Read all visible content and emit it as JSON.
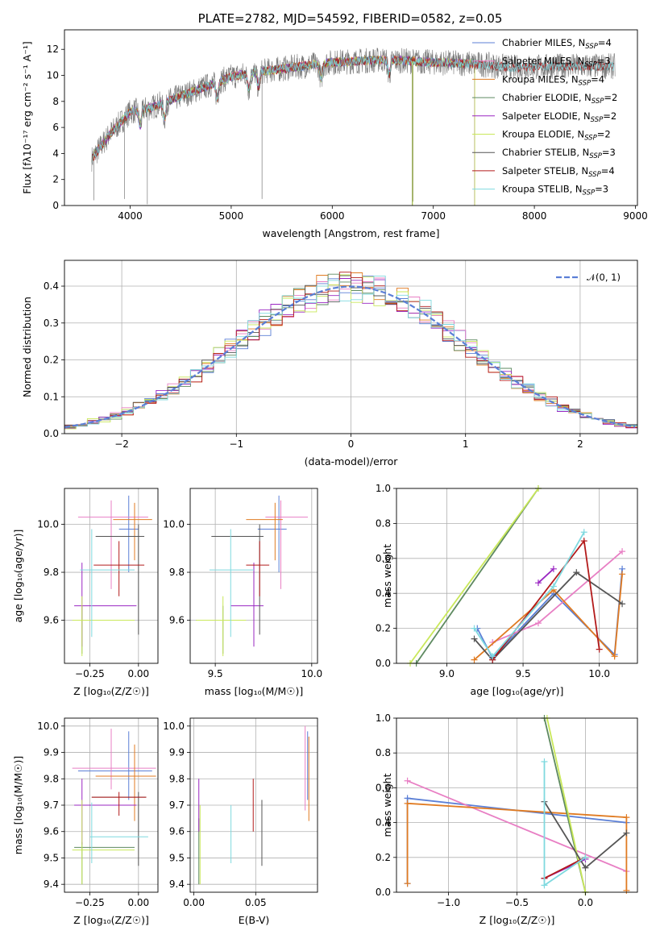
{
  "figure_title": "PLATE=2782, MJD=54592, FIBERID=0582, z=0.05",
  "colors": {
    "chabrier_miles": "#5b7fd6",
    "salpeter_miles": "#e87fc4",
    "kroupa_miles": "#e07b22",
    "chabrier_elodie": "#5e8a60",
    "salpeter_elodie": "#9a27c2",
    "kroupa_elodie": "#c9e85a",
    "chabrier_stelib": "#555555",
    "salpeter_stelib": "#b31b1b",
    "kroupa_stelib": "#7fd9df",
    "data": "#7a7a7a",
    "gaussian": "#5b7fd6",
    "grid": "#b0b0b0"
  },
  "chart_data": [
    {
      "type": "line",
      "title": "PLATE=2782, MJD=54592, FIBERID=0582, z=0.05",
      "xlabel": "wavelength [Angstrom, rest frame]",
      "ylabel": "Flux [fλ10⁻¹⁷ erg cm⁻² s⁻¹ A⁻¹]",
      "xlim": [
        3350,
        9020
      ],
      "ylim": [
        0,
        13.5
      ],
      "xticks": [
        "4000",
        "5000",
        "6000",
        "7000",
        "8000",
        "9000"
      ],
      "yticks": [
        "0",
        "2",
        "4",
        "6",
        "8",
        "10",
        "12"
      ],
      "legend_position": "right",
      "legend": [
        {
          "label": "Chabrier MILES, N",
          "sub": "SSP",
          "suffix": "=4"
        },
        {
          "label": "Salpeter MILES, N",
          "sub": "SSP",
          "suffix": "=3"
        },
        {
          "label": "Kroupa MILES, N",
          "sub": "SSP",
          "suffix": "=4"
        },
        {
          "label": "Chabrier ELODIE, N",
          "sub": "SSP",
          "suffix": "=2"
        },
        {
          "label": "Salpeter ELODIE, N",
          "sub": "SSP",
          "suffix": "=2"
        },
        {
          "label": "Kroupa ELODIE, N",
          "sub": "SSP",
          "suffix": "=2"
        },
        {
          "label": "Chabrier STELIB, N",
          "sub": "SSP",
          "suffix": "=3"
        },
        {
          "label": "Salpeter STELIB, N",
          "sub": "SSP",
          "suffix": "=4"
        },
        {
          "label": "Kroupa STELIB, N",
          "sub": "SSP",
          "suffix": "=3"
        }
      ],
      "continuum": {
        "x": [
          3620,
          3800,
          4000,
          4200,
          4500,
          4800,
          5000,
          5300,
          5600,
          6000,
          6500,
          7000,
          7400,
          7800,
          8200,
          8800
        ],
        "y": [
          3.6,
          5.5,
          7.2,
          7.5,
          8.4,
          9.3,
          9.9,
          10.3,
          10.6,
          11.0,
          11.2,
          11.0,
          10.9,
          10.6,
          10.7,
          10.7
        ]
      },
      "data_range": [
        3620,
        8800
      ],
      "model_range_miles_elodie": [
        3620,
        7410
      ],
      "model_range_stelib": [
        3620,
        8790
      ]
    },
    {
      "type": "bar",
      "xlabel": "(data-model)/error",
      "ylabel": "Normed distribution",
      "xlim": [
        -2.5,
        2.5
      ],
      "ylim": [
        0,
        0.47
      ],
      "xticks": [
        "−2",
        "−1",
        "0",
        "1",
        "2"
      ],
      "yticks": [
        "0.0",
        "0.1",
        "0.2",
        "0.3",
        "0.4"
      ],
      "bin_width": 0.1,
      "legend_label": "𝒩(0, 1)",
      "legend_position": "top-right"
    },
    {
      "type": "scatter",
      "xlabel": "Z [log₁₀(Z/Z☉)]",
      "ylabel": "age  [log₁₀(age/yr)]",
      "xlim": [
        -0.38,
        0.1
      ],
      "ylim": [
        9.42,
        10.15
      ],
      "xticks": [
        "−0.25",
        "0.00"
      ],
      "yticks": [
        "9.6",
        "9.8",
        "10.0"
      ],
      "points": [
        {
          "s": "chabrier_miles",
          "x": -0.05,
          "y": 9.98,
          "xe": [
            -0.1,
            0.0
          ],
          "ye": [
            9.8,
            10.12
          ]
        },
        {
          "s": "salpeter_miles",
          "x": -0.14,
          "y": 10.03,
          "xe": [
            -0.31,
            0.05
          ],
          "ye": [
            9.73,
            10.1
          ]
        },
        {
          "s": "kroupa_miles",
          "x": -0.02,
          "y": 10.02,
          "xe": [
            -0.13,
            0.07
          ],
          "ye": [
            9.85,
            10.09
          ]
        },
        {
          "s": "chabrier_elodie",
          "x": -0.29,
          "y": 9.6,
          "xe": [
            -0.3,
            -0.17
          ],
          "ye": [
            9.46,
            9.66
          ]
        },
        {
          "s": "salpeter_elodie",
          "x": -0.29,
          "y": 9.66,
          "xe": [
            -0.33,
            -0.01
          ],
          "ye": [
            9.49,
            9.84
          ]
        },
        {
          "s": "kroupa_elodie",
          "x": -0.29,
          "y": 9.6,
          "xe": [
            -0.34,
            -0.02
          ],
          "ye": [
            9.45,
            9.7
          ]
        },
        {
          "s": "chabrier_stelib",
          "x": 0.0,
          "y": 9.95,
          "xe": [
            -0.22,
            0.03
          ],
          "ye": [
            9.54,
            10.0
          ]
        },
        {
          "s": "salpeter_stelib",
          "x": -0.1,
          "y": 9.83,
          "xe": [
            -0.23,
            0.03
          ],
          "ye": [
            9.7,
            9.93
          ]
        },
        {
          "s": "kroupa_stelib",
          "x": -0.24,
          "y": 9.81,
          "xe": [
            -0.3,
            -0.02
          ],
          "ye": [
            9.53,
            9.98
          ]
        }
      ]
    },
    {
      "type": "scatter",
      "xlabel": "mass [log₁₀(M/M☉)]",
      "ylabel": "",
      "xlim": [
        9.37,
        10.03
      ],
      "ylim": [
        9.42,
        10.15
      ],
      "xticks": [
        "9.5",
        "10.0"
      ],
      "yticks": [
        "9.6",
        "9.8",
        "10.0"
      ],
      "points": [
        {
          "s": "chabrier_miles",
          "x": 9.83,
          "y": 9.98,
          "xe": [
            9.72,
            9.87
          ],
          "ye": [
            9.8,
            10.12
          ]
        },
        {
          "s": "salpeter_miles",
          "x": 9.84,
          "y": 10.03,
          "xe": [
            9.76,
            9.98
          ],
          "ye": [
            9.73,
            10.1
          ]
        },
        {
          "s": "kroupa_miles",
          "x": 9.81,
          "y": 10.02,
          "xe": [
            9.66,
            9.85
          ],
          "ye": [
            9.85,
            10.09
          ]
        },
        {
          "s": "chabrier_elodie",
          "x": 9.54,
          "y": 9.6,
          "xe": [
            9.4,
            9.56
          ],
          "ye": [
            9.46,
            9.66
          ]
        },
        {
          "s": "salpeter_elodie",
          "x": 9.7,
          "y": 9.66,
          "xe": [
            9.58,
            9.75
          ],
          "ye": [
            9.49,
            9.84
          ]
        },
        {
          "s": "kroupa_elodie",
          "x": 9.54,
          "y": 9.6,
          "xe": [
            9.4,
            9.66
          ],
          "ye": [
            9.45,
            9.7
          ]
        },
        {
          "s": "chabrier_stelib",
          "x": 9.73,
          "y": 9.95,
          "xe": [
            9.48,
            9.75
          ],
          "ye": [
            9.54,
            10.0
          ]
        },
        {
          "s": "salpeter_stelib",
          "x": 9.73,
          "y": 9.83,
          "xe": [
            9.66,
            9.78
          ],
          "ye": [
            9.7,
            9.93
          ]
        },
        {
          "s": "kroupa_stelib",
          "x": 9.58,
          "y": 9.81,
          "xe": [
            9.47,
            9.7
          ],
          "ye": [
            9.53,
            9.98
          ]
        }
      ]
    },
    {
      "type": "line",
      "xlabel": "age  [log₁₀(age/yr)]",
      "ylabel": "mass weight",
      "xlim": [
        8.67,
        10.25
      ],
      "ylim": [
        0,
        1
      ],
      "xticks": [
        "9.0",
        "9.5",
        "10.0"
      ],
      "yticks": [
        "0.0",
        "0.2",
        "0.4",
        "0.6",
        "0.8",
        "1.0"
      ],
      "series": [
        {
          "s": "chabrier_miles",
          "x": [
            9.2,
            9.3,
            9.7,
            10.1,
            10.15
          ],
          "y": [
            0.2,
            0.03,
            0.4,
            0.05,
            0.54
          ]
        },
        {
          "s": "salpeter_miles",
          "x": [
            9.3,
            9.6,
            10.15
          ],
          "y": [
            0.12,
            0.23,
            0.64
          ]
        },
        {
          "s": "kroupa_miles",
          "x": [
            9.18,
            9.7,
            10.1,
            10.15
          ],
          "y": [
            0.02,
            0.42,
            0.04,
            0.51
          ]
        },
        {
          "s": "chabrier_elodie",
          "x": [
            8.8,
            9.6
          ],
          "y": [
            0.0,
            1.0
          ]
        },
        {
          "s": "salpeter_elodie",
          "x": [
            9.6,
            9.7
          ],
          "y": [
            0.46,
            0.54
          ]
        },
        {
          "s": "kroupa_elodie",
          "x": [
            8.76,
            9.6
          ],
          "y": [
            0.0,
            1.0
          ]
        },
        {
          "s": "chabrier_stelib",
          "x": [
            9.18,
            9.3,
            9.85,
            10.15
          ],
          "y": [
            0.14,
            0.02,
            0.52,
            0.34
          ]
        },
        {
          "s": "salpeter_stelib",
          "x": [
            9.3,
            9.9,
            10.0
          ],
          "y": [
            0.02,
            0.7,
            0.08
          ]
        },
        {
          "s": "kroupa_stelib",
          "x": [
            9.18,
            9.3,
            9.7,
            9.9
          ],
          "y": [
            0.2,
            0.04,
            0.44,
            0.75
          ]
        }
      ]
    },
    {
      "type": "scatter",
      "xlabel": "Z [log₁₀(Z/Z☉)]",
      "ylabel": "mass [log₁₀(M/M☉)]",
      "xlim": [
        -0.38,
        0.1
      ],
      "ylim": [
        9.37,
        10.03
      ],
      "xticks": [
        "−0.25",
        "0.00"
      ],
      "yticks": [
        "9.4",
        "9.5",
        "9.6",
        "9.7",
        "9.8",
        "9.9",
        "10.0"
      ],
      "points": [
        {
          "s": "chabrier_miles",
          "x": -0.05,
          "y": 9.83,
          "xe": [
            -0.31,
            0.07
          ],
          "ye": [
            9.72,
            9.98
          ]
        },
        {
          "s": "salpeter_miles",
          "x": -0.14,
          "y": 9.84,
          "xe": [
            -0.34,
            0.09
          ],
          "ye": [
            9.76,
            9.99
          ]
        },
        {
          "s": "kroupa_miles",
          "x": -0.02,
          "y": 9.81,
          "xe": [
            -0.22,
            0.09
          ],
          "ye": [
            9.64,
            9.93
          ]
        },
        {
          "s": "chabrier_elodie",
          "x": -0.29,
          "y": 9.54,
          "xe": [
            -0.33,
            -0.02
          ],
          "ye": [
            9.4,
            9.56
          ]
        },
        {
          "s": "salpeter_elodie",
          "x": -0.29,
          "y": 9.7,
          "xe": [
            -0.33,
            -0.01
          ],
          "ye": [
            9.55,
            9.8
          ]
        },
        {
          "s": "kroupa_elodie",
          "x": -0.29,
          "y": 9.53,
          "xe": [
            -0.34,
            -0.02
          ],
          "ye": [
            9.4,
            9.72
          ]
        },
        {
          "s": "chabrier_stelib",
          "x": 0.0,
          "y": 9.73,
          "xe": [
            -0.24,
            0.04
          ],
          "ye": [
            9.47,
            9.75
          ]
        },
        {
          "s": "salpeter_stelib",
          "x": -0.1,
          "y": 9.73,
          "xe": [
            -0.24,
            0.04
          ],
          "ye": [
            9.66,
            9.75
          ]
        },
        {
          "s": "kroupa_stelib",
          "x": -0.24,
          "y": 9.58,
          "xe": [
            -0.25,
            0.05
          ],
          "ye": [
            9.48,
            9.71
          ]
        }
      ]
    },
    {
      "type": "scatter",
      "xlabel": "E(B-V)",
      "ylabel": "",
      "xlim": [
        -0.003,
        0.1
      ],
      "ylim": [
        9.37,
        10.03
      ],
      "xticks": [
        "0.00",
        "0.05"
      ],
      "yticks": [
        "9.4",
        "9.5",
        "9.6",
        "9.7",
        "9.8",
        "9.9",
        "10.0"
      ],
      "points": [
        {
          "s": "chabrier_miles",
          "x": 0.092,
          "y": 9.83,
          "ye": [
            9.72,
            9.98
          ]
        },
        {
          "s": "salpeter_miles",
          "x": 0.09,
          "y": 9.84,
          "ye": [
            9.68,
            10.0
          ]
        },
        {
          "s": "kroupa_miles",
          "x": 0.093,
          "y": 9.81,
          "ye": [
            9.64,
            9.96
          ]
        },
        {
          "s": "chabrier_elodie",
          "x": 0.004,
          "y": 9.54,
          "ye": [
            9.4,
            9.65
          ]
        },
        {
          "s": "salpeter_elodie",
          "x": 0.004,
          "y": 9.7,
          "ye": [
            9.6,
            9.8
          ]
        },
        {
          "s": "kroupa_elodie",
          "x": 0.005,
          "y": 9.53,
          "ye": [
            9.4,
            9.7
          ]
        },
        {
          "s": "chabrier_stelib",
          "x": 0.055,
          "y": 9.6,
          "ye": [
            9.47,
            9.72
          ]
        },
        {
          "s": "salpeter_stelib",
          "x": 0.048,
          "y": 9.7,
          "ye": [
            9.6,
            9.8
          ]
        },
        {
          "s": "kroupa_stelib",
          "x": 0.03,
          "y": 9.58,
          "ye": [
            9.48,
            9.7
          ]
        }
      ]
    },
    {
      "type": "line",
      "xlabel": "Z [log₁₀(Z/Z☉)]",
      "ylabel": "mass weight",
      "xlim": [
        -1.38,
        0.38
      ],
      "ylim": [
        0,
        1
      ],
      "xticks": [
        "−1.0",
        "−0.5",
        "0.0"
      ],
      "yticks": [
        "0.0",
        "0.2",
        "0.4",
        "0.6",
        "0.8",
        "1.0"
      ],
      "series": [
        {
          "s": "chabrier_miles",
          "x": [
            -1.3,
            -1.3,
            0.3
          ],
          "y": [
            0.05,
            0.54,
            0.4
          ]
        },
        {
          "s": "salpeter_miles",
          "x": [
            -1.3,
            0.3
          ],
          "y": [
            0.64,
            0.12
          ]
        },
        {
          "s": "kroupa_miles",
          "x": [
            -1.3,
            -1.3,
            0.3,
            0.3
          ],
          "y": [
            0.05,
            0.51,
            0.43,
            0.01
          ]
        },
        {
          "s": "chabrier_elodie",
          "x": [
            -0.3,
            0.0
          ],
          "y": [
            1.0,
            0.0
          ]
        },
        {
          "s": "salpeter_elodie",
          "x": [
            -0.3,
            0.0
          ],
          "y": [
            0.08,
            0.19
          ]
        },
        {
          "s": "kroupa_elodie",
          "x": [
            -0.28,
            0.0
          ],
          "y": [
            1.0,
            0.0
          ]
        },
        {
          "s": "chabrier_stelib",
          "x": [
            -0.3,
            0.0,
            0.3
          ],
          "y": [
            0.52,
            0.14,
            0.34
          ]
        },
        {
          "s": "salpeter_stelib",
          "x": [
            -0.3,
            0.0
          ],
          "y": [
            0.08,
            0.2
          ]
        },
        {
          "s": "kroupa_stelib",
          "x": [
            -0.3,
            -0.3,
            0.0
          ],
          "y": [
            0.75,
            0.04,
            0.2
          ]
        }
      ]
    }
  ]
}
